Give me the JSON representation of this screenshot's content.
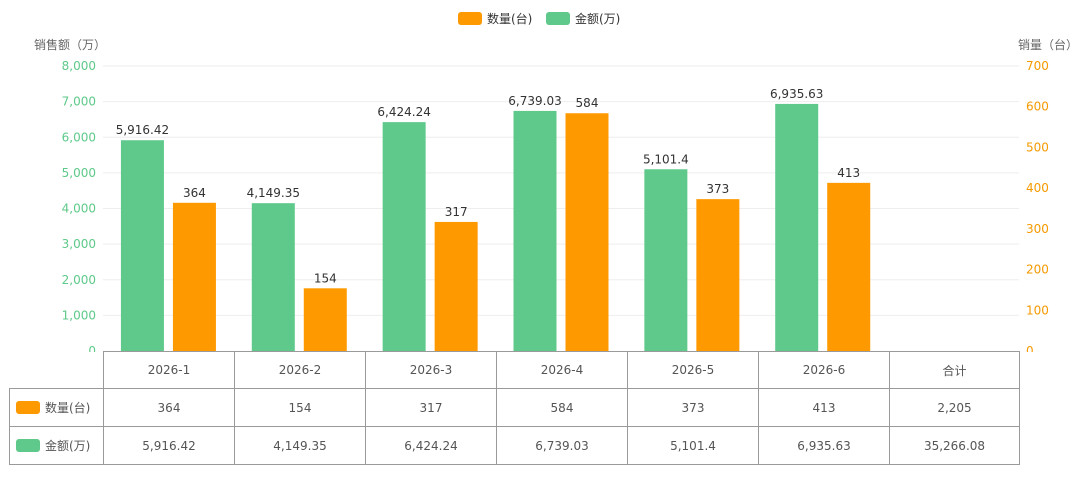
{
  "chart_data": {
    "type": "bar",
    "categories": [
      "2026-1",
      "2026-2",
      "2026-3",
      "2026-4",
      "2026-5",
      "2026-6"
    ],
    "series": [
      {
        "name": "金额(万)",
        "axis": "left",
        "color": "#5ec98a",
        "values": [
          5916.42,
          4149.35,
          6424.24,
          6739.03,
          5101.4,
          6935.63
        ],
        "labels": [
          "5,916.42",
          "4,149.35",
          "6,424.24",
          "6,739.03",
          "5,101.4",
          "6,935.63"
        ]
      },
      {
        "name": "数量(台)",
        "axis": "right",
        "color": "#ff9900",
        "values": [
          364,
          154,
          317,
          584,
          373,
          413
        ],
        "labels": [
          "364",
          "154",
          "317",
          "584",
          "373",
          "413"
        ]
      }
    ],
    "y_left": {
      "label": "销售额（万）",
      "range": [
        0,
        8000
      ],
      "ticks": [
        "0",
        "1,000",
        "2,000",
        "3,000",
        "4,000",
        "5,000",
        "6,000",
        "7,000",
        "8,000"
      ]
    },
    "y_right": {
      "label": "销量（台）",
      "range": [
        0,
        700
      ],
      "ticks": [
        "0",
        "100",
        "200",
        "300",
        "400",
        "500",
        "600",
        "700"
      ]
    },
    "legend": {
      "placement": "top-center",
      "items": [
        {
          "name": "数量(台)",
          "color": "#ff9900"
        },
        {
          "name": "金额(万)",
          "color": "#5ec98a"
        }
      ]
    },
    "grid": true
  },
  "table": {
    "total_header": "合计",
    "rows": [
      {
        "name": "数量(台)",
        "color": "#ff9900",
        "cells": [
          "364",
          "154",
          "317",
          "584",
          "373",
          "413",
          "2,205"
        ]
      },
      {
        "name": "金额(万)",
        "color": "#5ec98a",
        "cells": [
          "5,916.42",
          "4,149.35",
          "6,424.24",
          "6,739.03",
          "5,101.4",
          "6,935.63",
          "35,266.08"
        ]
      }
    ]
  }
}
